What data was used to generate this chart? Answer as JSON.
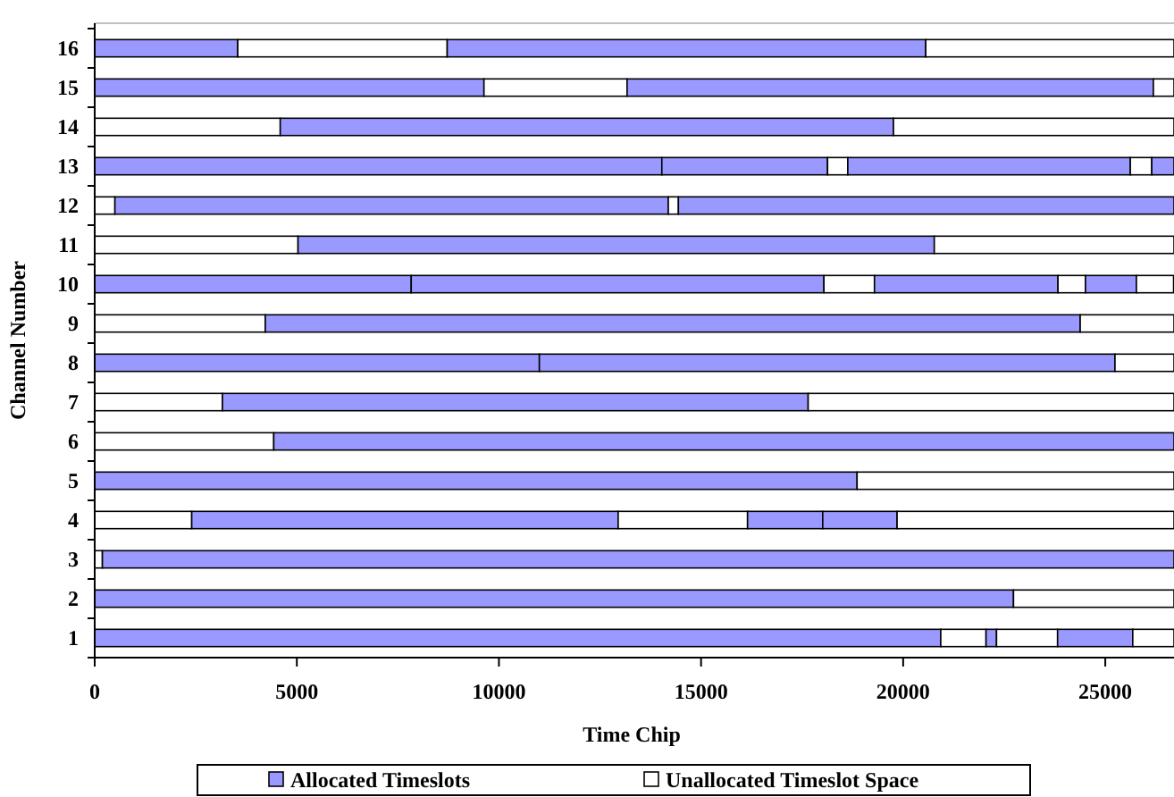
{
  "chart_data": {
    "type": "bar",
    "orientation": "horizontal",
    "stacked": true,
    "xlabel": "Time Chip",
    "ylabel": "Channel Number",
    "categories": [
      "16",
      "15",
      "14",
      "13",
      "12",
      "11",
      "10",
      "9",
      "8",
      "7",
      "6",
      "5",
      "4",
      "3",
      "2",
      "1"
    ],
    "xlim": [
      0,
      26700
    ],
    "xticks": [
      0,
      5000,
      10000,
      15000,
      20000,
      25000
    ],
    "legend": "bottom",
    "grid": false,
    "series": [
      {
        "name": "Allocated Timeslots",
        "color": "#9999ff",
        "values": [
          3540,
          9630,
          null,
          14030,
          null,
          null,
          7830,
          null,
          11000,
          null,
          null,
          18860,
          null,
          null,
          22730,
          20930
        ]
      },
      {
        "name": "Unallocated Timeslot Space",
        "color": "#ffffff",
        "values": [
          5180,
          3540,
          4590,
          null,
          500,
          5030,
          null,
          4220,
          null,
          3160,
          4430,
          7840,
          2400,
          190,
          3970,
          1120
        ]
      },
      {
        "color": "#9999ff",
        "values": [
          11840,
          13020,
          15170,
          4100,
          13690,
          15740,
          10210,
          20160,
          14240,
          14490,
          22270,
          null,
          10550,
          26510,
          null,
          260
        ]
      },
      {
        "color": "#ffffff",
        "values": [
          6140,
          510,
          6940,
          500,
          250,
          5930,
          1250,
          2320,
          1460,
          9050,
          null,
          null,
          3200,
          null,
          null,
          1510
        ]
      },
      {
        "color": "#9999ff",
        "values": [
          null,
          null,
          null,
          6990,
          12260,
          null,
          4540,
          null,
          null,
          null,
          null,
          null,
          1860,
          null,
          null,
          1860
        ]
      },
      {
        "color": "#ffffff",
        "values": [
          null,
          null,
          null,
          530,
          null,
          null,
          680,
          null,
          null,
          null,
          null,
          null,
          null,
          null,
          null,
          1020
        ]
      },
      {
        "color": "#9999ff",
        "values": [
          null,
          null,
          null,
          550,
          null,
          null,
          1260,
          null,
          null,
          null,
          null,
          null,
          1840,
          null,
          null,
          null
        ]
      },
      {
        "color": "#ffffff",
        "values": [
          null,
          null,
          null,
          null,
          null,
          null,
          920,
          null,
          null,
          null,
          null,
          null,
          6850,
          null,
          null,
          null
        ]
      }
    ]
  }
}
